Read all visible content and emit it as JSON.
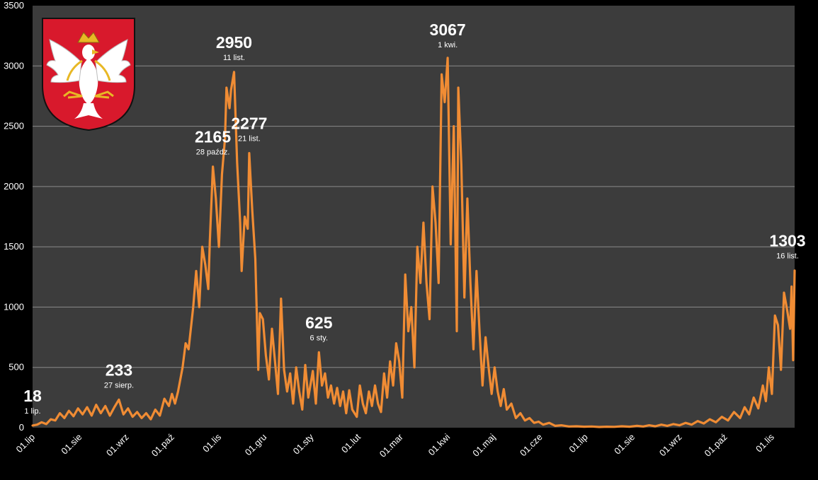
{
  "colors": {
    "background": "#000000",
    "plot_area": "#3c3c3c",
    "line": "#f08c34",
    "gridline": "#8a8a8a",
    "text": "#ffffff"
  },
  "emblem_icon": "coat-of-arms-white-eagle-on-red-shield",
  "chart_data": {
    "type": "line",
    "title": "",
    "xlabel": "",
    "ylabel": "",
    "ylim": [
      0,
      3500
    ],
    "yticks": [
      "0",
      "500",
      "1000",
      "1500",
      "2000",
      "2500",
      "3000",
      "3500"
    ],
    "xticks": [
      "01.lip",
      "01.sie",
      "01.wrz",
      "01.paź",
      "01.lis",
      "01.gru",
      "01.sty",
      "01.lut",
      "01.mar",
      "01.kwi",
      "01.maj",
      "01.cze",
      "01.lip",
      "01.sie",
      "01.wrz",
      "01.paź",
      "01.lis"
    ],
    "grid": "horizontal",
    "legend": "none",
    "x_start": "2020-07-01",
    "x_end": "2021-11-16",
    "annotations": [
      {
        "value": "18",
        "date": "1 lip."
      },
      {
        "value": "233",
        "date": "27 sierp."
      },
      {
        "value": "2165",
        "date": "28 paźdz."
      },
      {
        "value": "2950",
        "date": "11 list."
      },
      {
        "value": "2277",
        "date": "21 list."
      },
      {
        "value": "625",
        "date": "6 sty."
      },
      {
        "value": "3067",
        "date": "1 kwi."
      },
      {
        "value": "1303",
        "date": "16 list."
      }
    ],
    "series": [
      {
        "values": [
          [
            "2020-07-01",
            18
          ],
          [
            "2020-07-04",
            25
          ],
          [
            "2020-07-07",
            45
          ],
          [
            "2020-07-10",
            30
          ],
          [
            "2020-07-13",
            70
          ],
          [
            "2020-07-16",
            60
          ],
          [
            "2020-07-19",
            120
          ],
          [
            "2020-07-22",
            80
          ],
          [
            "2020-07-25",
            140
          ],
          [
            "2020-07-28",
            95
          ],
          [
            "2020-07-31",
            160
          ],
          [
            "2020-08-03",
            110
          ],
          [
            "2020-08-06",
            170
          ],
          [
            "2020-08-09",
            100
          ],
          [
            "2020-08-12",
            190
          ],
          [
            "2020-08-15",
            120
          ],
          [
            "2020-08-18",
            180
          ],
          [
            "2020-08-21",
            100
          ],
          [
            "2020-08-24",
            170
          ],
          [
            "2020-08-27",
            233
          ],
          [
            "2020-08-30",
            110
          ],
          [
            "2020-09-02",
            160
          ],
          [
            "2020-09-05",
            90
          ],
          [
            "2020-09-08",
            130
          ],
          [
            "2020-09-11",
            80
          ],
          [
            "2020-09-14",
            120
          ],
          [
            "2020-09-17",
            70
          ],
          [
            "2020-09-20",
            150
          ],
          [
            "2020-09-23",
            100
          ],
          [
            "2020-09-26",
            240
          ],
          [
            "2020-09-29",
            180
          ],
          [
            "2020-10-01",
            280
          ],
          [
            "2020-10-03",
            200
          ],
          [
            "2020-10-05",
            300
          ],
          [
            "2020-10-08",
            500
          ],
          [
            "2020-10-10",
            700
          ],
          [
            "2020-10-12",
            650
          ],
          [
            "2020-10-15",
            1000
          ],
          [
            "2020-10-17",
            1300
          ],
          [
            "2020-10-19",
            1000
          ],
          [
            "2020-10-21",
            1500
          ],
          [
            "2020-10-23",
            1350
          ],
          [
            "2020-10-25",
            1150
          ],
          [
            "2020-10-26",
            1550
          ],
          [
            "2020-10-28",
            2165
          ],
          [
            "2020-10-30",
            1900
          ],
          [
            "2020-11-01",
            1500
          ],
          [
            "2020-11-03",
            2100
          ],
          [
            "2020-11-05",
            2400
          ],
          [
            "2020-11-06",
            2820
          ],
          [
            "2020-11-08",
            2650
          ],
          [
            "2020-11-09",
            2800
          ],
          [
            "2020-11-11",
            2950
          ],
          [
            "2020-11-13",
            2200
          ],
          [
            "2020-11-15",
            1700
          ],
          [
            "2020-11-16",
            1300
          ],
          [
            "2020-11-18",
            1750
          ],
          [
            "2020-11-20",
            1650
          ],
          [
            "2020-11-21",
            2277
          ],
          [
            "2020-11-23",
            1800
          ],
          [
            "2020-11-25",
            1400
          ],
          [
            "2020-11-27",
            480
          ],
          [
            "2020-11-28",
            950
          ],
          [
            "2020-11-30",
            900
          ],
          [
            "2020-12-02",
            600
          ],
          [
            "2020-12-04",
            400
          ],
          [
            "2020-12-06",
            820
          ],
          [
            "2020-12-08",
            550
          ],
          [
            "2020-12-10",
            280
          ],
          [
            "2020-12-12",
            1070
          ],
          [
            "2020-12-14",
            480
          ],
          [
            "2020-12-16",
            300
          ],
          [
            "2020-12-18",
            450
          ],
          [
            "2020-12-20",
            200
          ],
          [
            "2020-12-22",
            500
          ],
          [
            "2020-12-24",
            300
          ],
          [
            "2020-12-26",
            150
          ],
          [
            "2020-12-28",
            520
          ],
          [
            "2020-12-30",
            250
          ],
          [
            "2021-01-02",
            470
          ],
          [
            "2021-01-04",
            200
          ],
          [
            "2021-01-06",
            625
          ],
          [
            "2021-01-08",
            350
          ],
          [
            "2021-01-10",
            450
          ],
          [
            "2021-01-12",
            250
          ],
          [
            "2021-01-14",
            350
          ],
          [
            "2021-01-16",
            200
          ],
          [
            "2021-01-18",
            330
          ],
          [
            "2021-01-20",
            180
          ],
          [
            "2021-01-22",
            300
          ],
          [
            "2021-01-24",
            120
          ],
          [
            "2021-01-26",
            310
          ],
          [
            "2021-01-28",
            150
          ],
          [
            "2021-01-31",
            90
          ],
          [
            "2021-02-02",
            350
          ],
          [
            "2021-02-04",
            200
          ],
          [
            "2021-02-06",
            120
          ],
          [
            "2021-02-08",
            300
          ],
          [
            "2021-02-10",
            180
          ],
          [
            "2021-02-12",
            350
          ],
          [
            "2021-02-14",
            200
          ],
          [
            "2021-02-16",
            130
          ],
          [
            "2021-02-18",
            450
          ],
          [
            "2021-02-20",
            250
          ],
          [
            "2021-02-22",
            550
          ],
          [
            "2021-02-24",
            350
          ],
          [
            "2021-02-26",
            700
          ],
          [
            "2021-02-28",
            550
          ],
          [
            "2021-03-02",
            250
          ],
          [
            "2021-03-04",
            1270
          ],
          [
            "2021-03-06",
            800
          ],
          [
            "2021-03-08",
            1000
          ],
          [
            "2021-03-10",
            500
          ],
          [
            "2021-03-12",
            1500
          ],
          [
            "2021-03-14",
            1200
          ],
          [
            "2021-03-16",
            1700
          ],
          [
            "2021-03-18",
            1200
          ],
          [
            "2021-03-20",
            900
          ],
          [
            "2021-03-22",
            2000
          ],
          [
            "2021-03-24",
            1700
          ],
          [
            "2021-03-26",
            1200
          ],
          [
            "2021-03-28",
            2930
          ],
          [
            "2021-03-30",
            2700
          ],
          [
            "2021-04-01",
            3067
          ],
          [
            "2021-04-03",
            1520
          ],
          [
            "2021-04-05",
            2500
          ],
          [
            "2021-04-07",
            800
          ],
          [
            "2021-04-08",
            2820
          ],
          [
            "2021-04-10",
            2180
          ],
          [
            "2021-04-12",
            1080
          ],
          [
            "2021-04-14",
            1900
          ],
          [
            "2021-04-16",
            1200
          ],
          [
            "2021-04-18",
            650
          ],
          [
            "2021-04-20",
            1300
          ],
          [
            "2021-04-22",
            800
          ],
          [
            "2021-04-24",
            350
          ],
          [
            "2021-04-26",
            750
          ],
          [
            "2021-04-28",
            500
          ],
          [
            "2021-04-30",
            280
          ],
          [
            "2021-05-02",
            500
          ],
          [
            "2021-05-04",
            300
          ],
          [
            "2021-05-06",
            180
          ],
          [
            "2021-05-08",
            320
          ],
          [
            "2021-05-10",
            150
          ],
          [
            "2021-05-13",
            200
          ],
          [
            "2021-05-16",
            80
          ],
          [
            "2021-05-19",
            120
          ],
          [
            "2021-05-22",
            60
          ],
          [
            "2021-05-25",
            80
          ],
          [
            "2021-05-28",
            40
          ],
          [
            "2021-05-31",
            50
          ],
          [
            "2021-06-03",
            25
          ],
          [
            "2021-06-07",
            40
          ],
          [
            "2021-06-11",
            15
          ],
          [
            "2021-06-15",
            20
          ],
          [
            "2021-06-20",
            10
          ],
          [
            "2021-06-25",
            12
          ],
          [
            "2021-06-30",
            8
          ],
          [
            "2021-07-05",
            10
          ],
          [
            "2021-07-10",
            6
          ],
          [
            "2021-07-15",
            8
          ],
          [
            "2021-07-20",
            7
          ],
          [
            "2021-07-25",
            12
          ],
          [
            "2021-07-30",
            8
          ],
          [
            "2021-08-04",
            15
          ],
          [
            "2021-08-08",
            10
          ],
          [
            "2021-08-12",
            20
          ],
          [
            "2021-08-16",
            12
          ],
          [
            "2021-08-20",
            25
          ],
          [
            "2021-08-24",
            15
          ],
          [
            "2021-08-28",
            30
          ],
          [
            "2021-09-01",
            20
          ],
          [
            "2021-09-05",
            40
          ],
          [
            "2021-09-09",
            25
          ],
          [
            "2021-09-13",
            55
          ],
          [
            "2021-09-17",
            35
          ],
          [
            "2021-09-21",
            70
          ],
          [
            "2021-09-25",
            45
          ],
          [
            "2021-09-29",
            90
          ],
          [
            "2021-10-03",
            60
          ],
          [
            "2021-10-07",
            130
          ],
          [
            "2021-10-11",
            80
          ],
          [
            "2021-10-14",
            170
          ],
          [
            "2021-10-17",
            110
          ],
          [
            "2021-10-20",
            250
          ],
          [
            "2021-10-23",
            160
          ],
          [
            "2021-10-26",
            350
          ],
          [
            "2021-10-28",
            220
          ],
          [
            "2021-10-30",
            500
          ],
          [
            "2021-11-01",
            280
          ],
          [
            "2021-11-03",
            930
          ],
          [
            "2021-11-05",
            850
          ],
          [
            "2021-11-07",
            480
          ],
          [
            "2021-11-09",
            1120
          ],
          [
            "2021-11-11",
            980
          ],
          [
            "2021-11-13",
            820
          ],
          [
            "2021-11-14",
            1170
          ],
          [
            "2021-11-15",
            560
          ],
          [
            "2021-11-16",
            1303
          ]
        ]
      }
    ]
  }
}
